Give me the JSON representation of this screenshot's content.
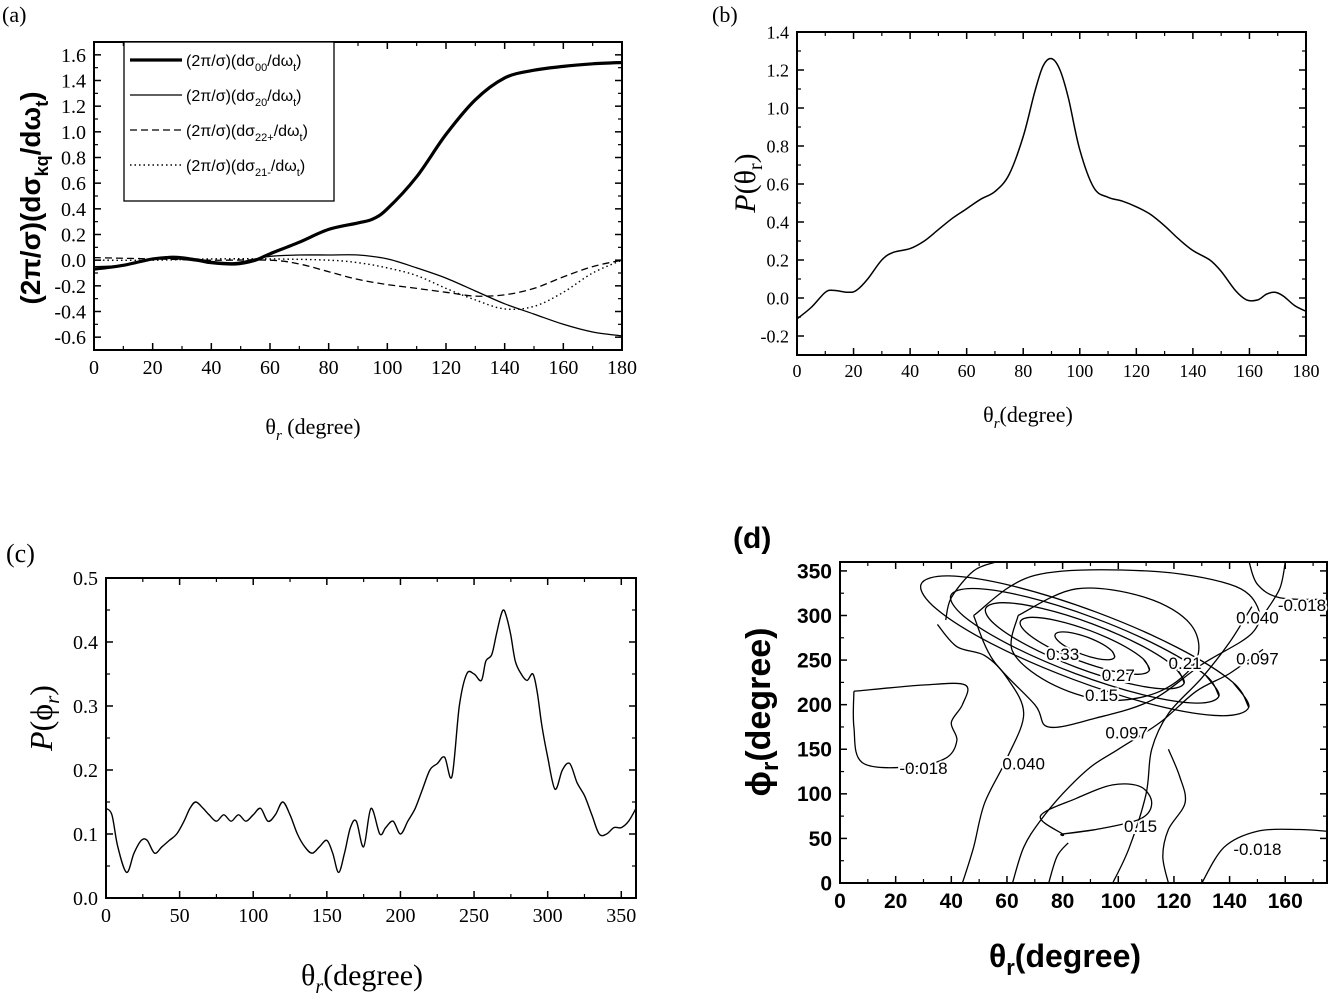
{
  "chart_data": [
    {
      "id": "a",
      "panel_label": "(a)",
      "type": "line",
      "xlabel": "θr (degree)",
      "ylabel": "(2π/σ)(dσkq/dωt)",
      "xlim": [
        0,
        180
      ],
      "ylim": [
        -0.7,
        1.7
      ],
      "xticks": [
        0,
        20,
        40,
        60,
        80,
        100,
        120,
        140,
        160,
        180
      ],
      "yticks": [
        -0.6,
        -0.4,
        -0.2,
        0.0,
        0.2,
        0.4,
        0.6,
        0.8,
        1.0,
        1.2,
        1.4,
        1.6
      ],
      "legend_position": "top-left",
      "series": [
        {
          "name": "(2π/σ)(dσ00/dωt)",
          "style": "bold",
          "x": [
            0,
            10,
            20,
            27,
            35,
            40,
            48,
            55,
            60,
            70,
            80,
            90,
            95,
            100,
            110,
            120,
            130,
            140,
            150,
            160,
            170,
            180
          ],
          "y": [
            -0.07,
            -0.04,
            0.01,
            0.02,
            0.0,
            -0.02,
            -0.03,
            0.0,
            0.05,
            0.14,
            0.24,
            0.29,
            0.32,
            0.4,
            0.65,
            0.98,
            1.25,
            1.42,
            1.48,
            1.51,
            1.53,
            1.54
          ]
        },
        {
          "name": "(2π/σ)(dσ20/dωt)",
          "style": "thin",
          "x": [
            0,
            10,
            20,
            27,
            35,
            40,
            48,
            55,
            60,
            70,
            80,
            90,
            100,
            110,
            120,
            130,
            140,
            150,
            160,
            170,
            180
          ],
          "y": [
            -0.05,
            -0.04,
            0.01,
            0.03,
            0.01,
            -0.01,
            -0.02,
            0.01,
            0.03,
            0.04,
            0.04,
            0.04,
            0.01,
            -0.06,
            -0.14,
            -0.24,
            -0.34,
            -0.42,
            -0.5,
            -0.56,
            -0.59
          ]
        },
        {
          "name": "(2π/σ)(dσ22+/dωt)",
          "style": "dashed",
          "x": [
            0,
            20,
            40,
            60,
            70,
            80,
            90,
            100,
            110,
            120,
            130,
            140,
            150,
            160,
            170,
            180
          ],
          "y": [
            0.02,
            0.01,
            0.0,
            0.0,
            -0.03,
            -0.09,
            -0.15,
            -0.19,
            -0.22,
            -0.25,
            -0.28,
            -0.27,
            -0.22,
            -0.13,
            -0.05,
            0.0
          ]
        },
        {
          "name": "(2π/σ)(dσ21-/dωt)",
          "style": "dotted",
          "x": [
            0,
            20,
            40,
            60,
            80,
            90,
            100,
            110,
            120,
            130,
            140,
            150,
            160,
            170,
            180
          ],
          "y": [
            0.0,
            0.0,
            0.01,
            0.01,
            0.0,
            -0.02,
            -0.06,
            -0.12,
            -0.22,
            -0.31,
            -0.38,
            -0.36,
            -0.25,
            -0.1,
            0.0
          ]
        }
      ]
    },
    {
      "id": "b",
      "panel_label": "(b)",
      "type": "line",
      "xlabel": "θr(degree)",
      "ylabel": "P(θr)",
      "xlim": [
        0,
        180
      ],
      "ylim": [
        -0.3,
        1.4
      ],
      "xticks": [
        0,
        20,
        40,
        60,
        80,
        100,
        120,
        140,
        160,
        180
      ],
      "yticks": [
        -0.2,
        0.0,
        0.2,
        0.4,
        0.6,
        0.8,
        1.0,
        1.2,
        1.4
      ],
      "x": [
        0,
        5,
        10,
        13,
        18,
        21,
        25,
        30,
        34,
        40,
        45,
        50,
        55,
        60,
        65,
        70,
        75,
        80,
        84,
        87,
        90,
        93,
        96,
        100,
        105,
        110,
        115,
        120,
        125,
        130,
        135,
        140,
        146,
        150,
        155,
        159,
        163,
        166,
        169,
        172,
        176,
        180
      ],
      "y": [
        -0.11,
        -0.05,
        0.03,
        0.04,
        0.03,
        0.04,
        0.1,
        0.2,
        0.24,
        0.26,
        0.3,
        0.36,
        0.42,
        0.47,
        0.52,
        0.56,
        0.65,
        0.85,
        1.08,
        1.22,
        1.26,
        1.2,
        1.05,
        0.78,
        0.58,
        0.53,
        0.51,
        0.48,
        0.44,
        0.38,
        0.31,
        0.25,
        0.2,
        0.14,
        0.04,
        -0.01,
        -0.01,
        0.02,
        0.03,
        0.01,
        -0.04,
        -0.07
      ]
    },
    {
      "id": "c",
      "panel_label": "(c)",
      "type": "line",
      "xlabel": "θr(degree)",
      "ylabel": "P(ϕr)",
      "xlim": [
        0,
        360
      ],
      "ylim": [
        0.0,
        0.5
      ],
      "xticks": [
        0,
        50,
        100,
        150,
        200,
        250,
        300,
        350
      ],
      "yticks": [
        0.0,
        0.1,
        0.2,
        0.3,
        0.4,
        0.5
      ],
      "x": [
        0,
        4,
        8,
        14,
        19,
        24,
        28,
        33,
        38,
        43,
        48,
        53,
        57,
        61,
        66,
        70,
        75,
        80,
        85,
        90,
        95,
        100,
        105,
        110,
        115,
        120,
        125,
        130,
        135,
        140,
        145,
        150,
        154,
        158,
        162,
        166,
        170,
        175,
        180,
        186,
        190,
        195,
        200,
        205,
        210,
        215,
        220,
        225,
        230,
        235,
        240,
        245,
        250,
        255,
        258,
        262,
        265,
        268,
        270,
        272,
        275,
        278,
        282,
        286,
        290,
        293,
        296,
        300,
        305,
        310,
        315,
        320,
        325,
        330,
        335,
        340,
        345,
        350,
        355,
        360
      ],
      "y": [
        0.14,
        0.13,
        0.08,
        0.04,
        0.07,
        0.09,
        0.09,
        0.07,
        0.08,
        0.09,
        0.1,
        0.12,
        0.14,
        0.15,
        0.14,
        0.13,
        0.12,
        0.13,
        0.12,
        0.13,
        0.12,
        0.13,
        0.14,
        0.12,
        0.13,
        0.15,
        0.13,
        0.1,
        0.08,
        0.07,
        0.08,
        0.09,
        0.07,
        0.04,
        0.07,
        0.11,
        0.12,
        0.08,
        0.14,
        0.1,
        0.11,
        0.12,
        0.1,
        0.12,
        0.14,
        0.17,
        0.2,
        0.21,
        0.22,
        0.19,
        0.3,
        0.35,
        0.35,
        0.34,
        0.37,
        0.38,
        0.41,
        0.44,
        0.45,
        0.44,
        0.41,
        0.37,
        0.35,
        0.34,
        0.35,
        0.32,
        0.27,
        0.22,
        0.17,
        0.2,
        0.21,
        0.18,
        0.16,
        0.13,
        0.1,
        0.1,
        0.11,
        0.11,
        0.12,
        0.14
      ]
    },
    {
      "id": "d",
      "panel_label": "(d)",
      "type": "contour",
      "xlabel": "θr(degree)",
      "ylabel": "ϕr(degree)",
      "xlim": [
        0,
        175
      ],
      "ylim": [
        0,
        360
      ],
      "xticks": [
        0,
        20,
        40,
        60,
        80,
        100,
        120,
        140,
        160
      ],
      "yticks": [
        0,
        50,
        100,
        150,
        200,
        250,
        300,
        350
      ],
      "contour_levels": [
        "-0.018",
        "0.040",
        "0.097",
        "0.15",
        "0.21",
        "0.27",
        "0.33"
      ],
      "contour_labels": [
        {
          "text": "0.33",
          "x": 80,
          "y": 257
        },
        {
          "text": "0.27",
          "x": 100,
          "y": 233
        },
        {
          "text": "0.21",
          "x": 124,
          "y": 247
        },
        {
          "text": "0.15",
          "x": 94,
          "y": 211
        },
        {
          "text": "0.097",
          "x": 103,
          "y": 169
        },
        {
          "text": "0.097",
          "x": 150,
          "y": 252
        },
        {
          "text": "0.040",
          "x": 150,
          "y": 298
        },
        {
          "text": "0.040",
          "x": 66,
          "y": 134
        },
        {
          "text": "-0.018",
          "x": 30,
          "y": 129
        },
        {
          "text": "-0.018",
          "x": 166,
          "y": 312
        },
        {
          "text": "-0.018",
          "x": 150,
          "y": 38
        },
        {
          "text": "0.15",
          "x": 108,
          "y": 64
        }
      ]
    }
  ]
}
